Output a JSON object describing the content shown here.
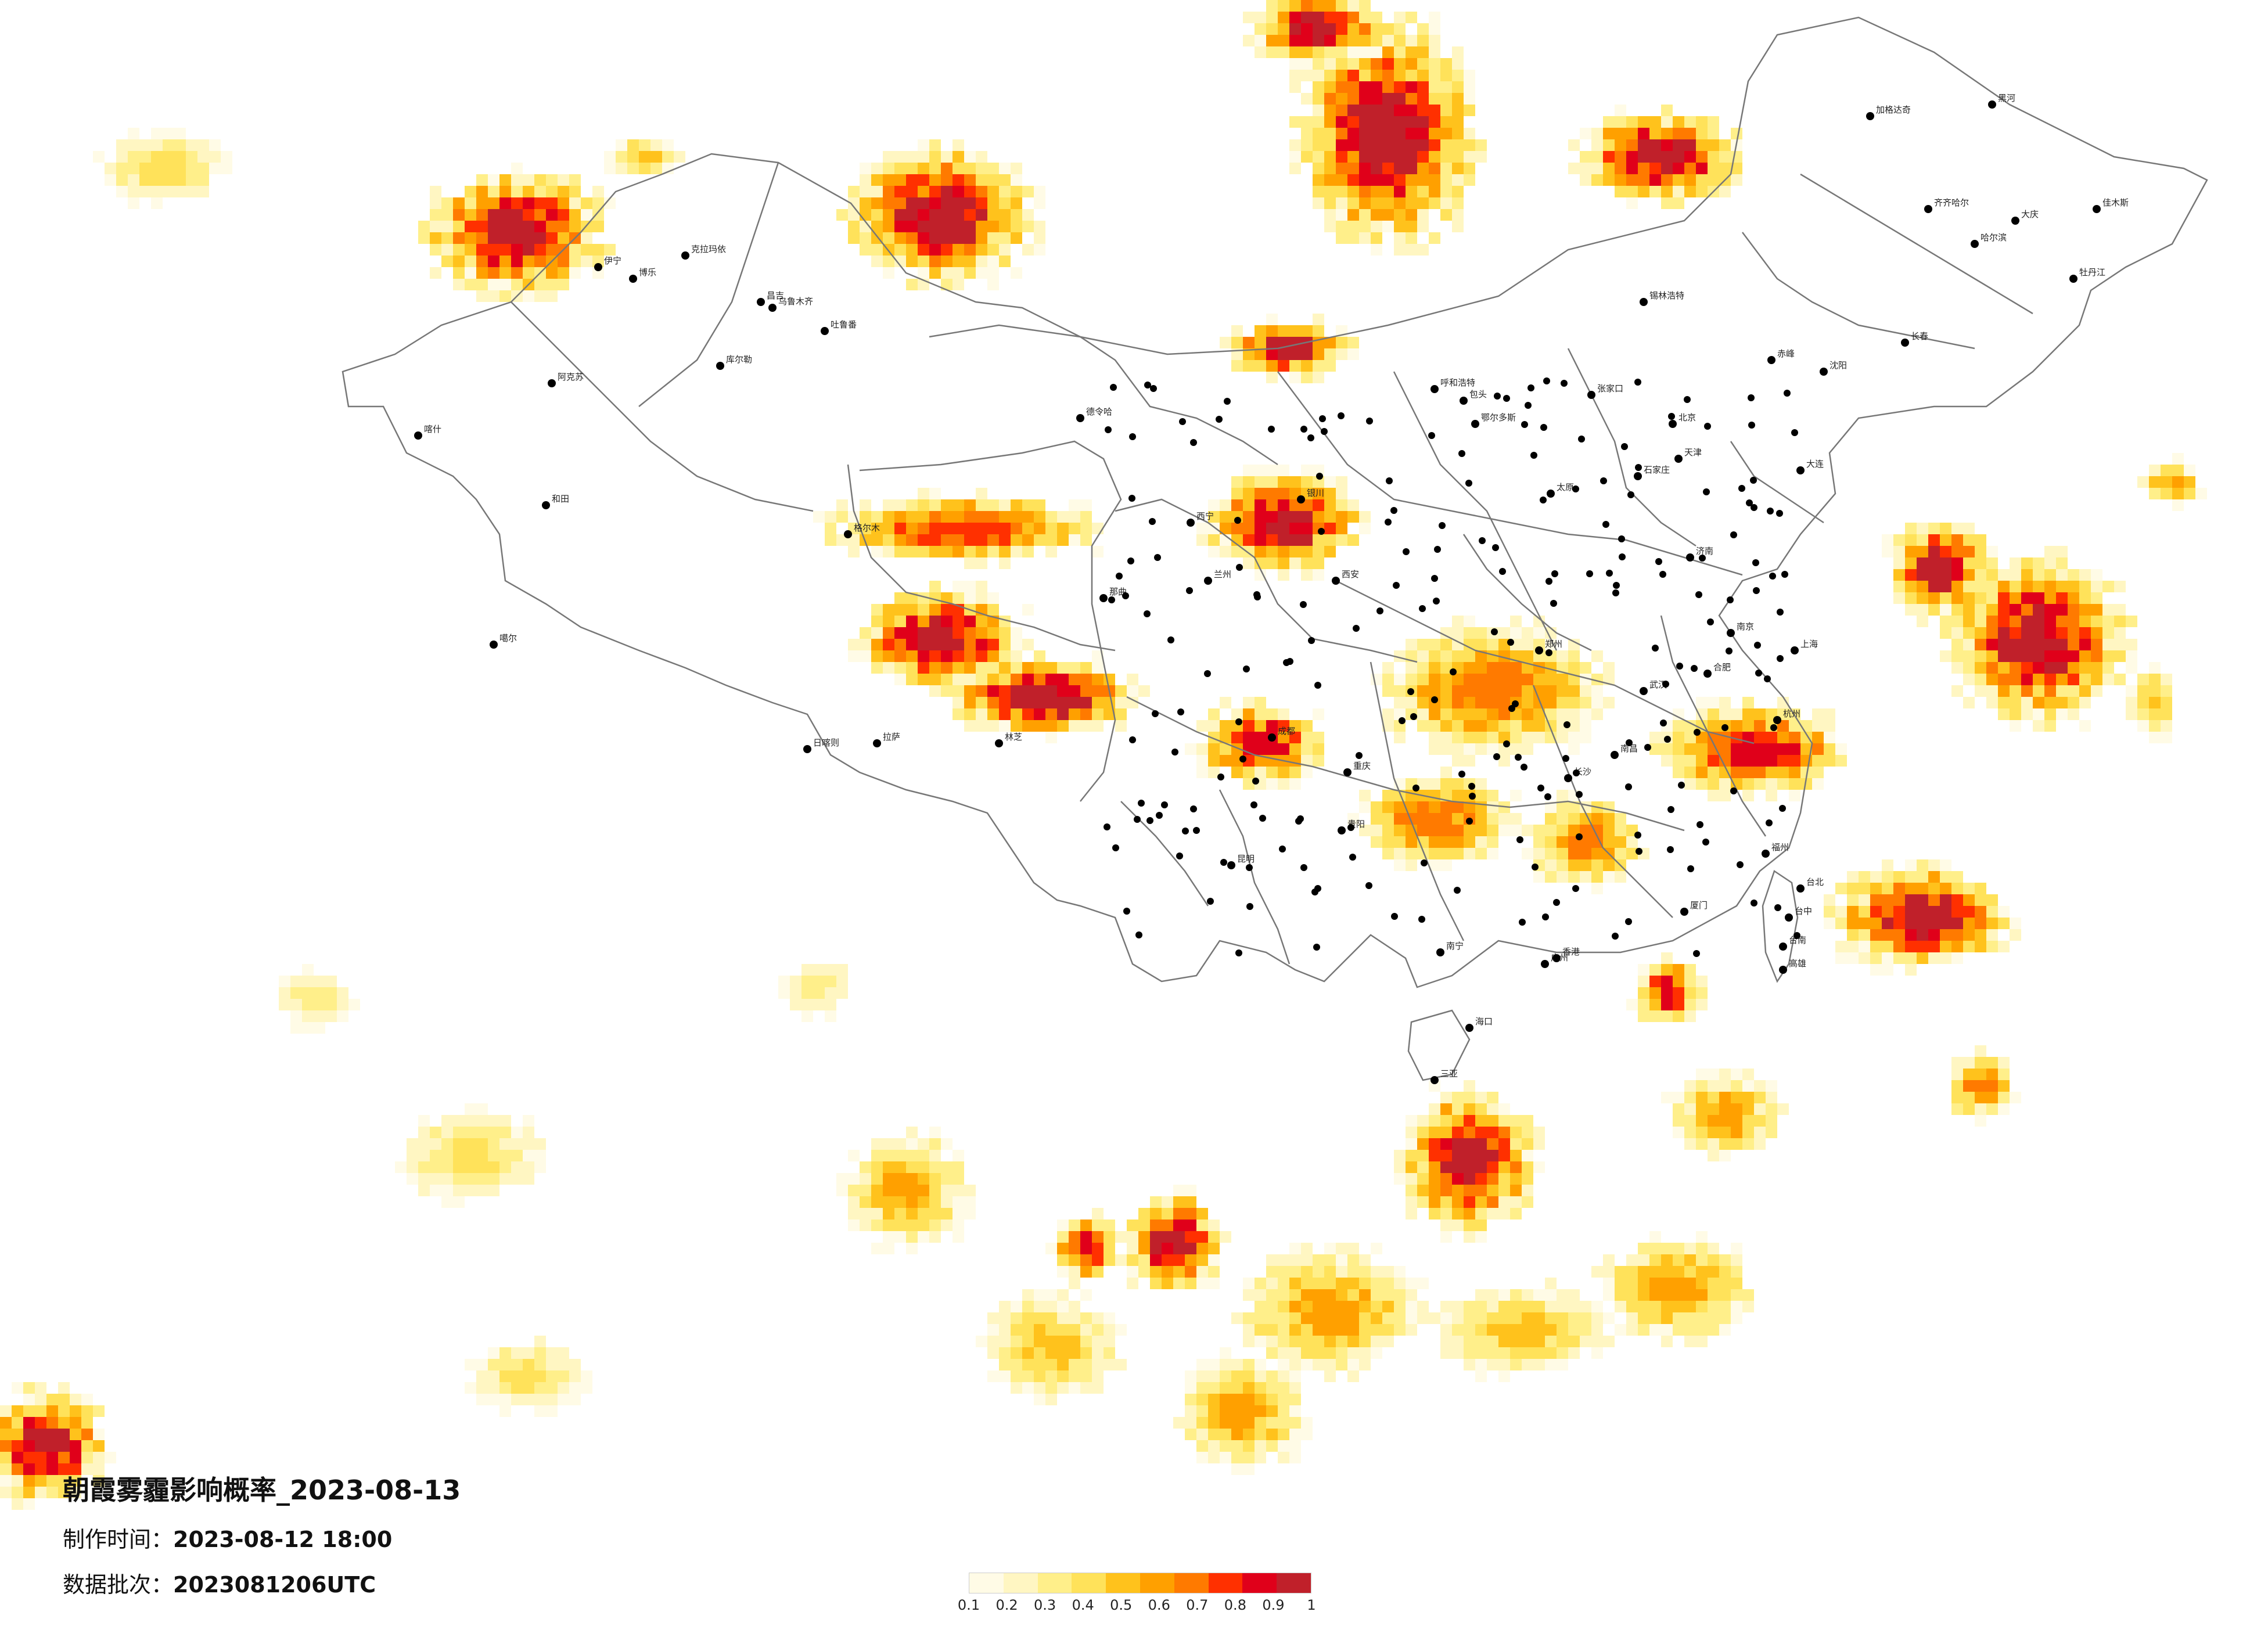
{
  "title": "朝霞雾霾影响概率_2023-08-13",
  "issue_time": {
    "label": "制作时间：",
    "value": "2023-08-12 18:00"
  },
  "data_batch": {
    "label": "数据批次：",
    "value": "2023081206UTC"
  },
  "legend": {
    "ticks": [
      "0.1",
      "0.2",
      "0.3",
      "0.4",
      "0.5",
      "0.6",
      "0.7",
      "0.8",
      "0.9",
      "1"
    ],
    "colors": [
      "#fffbe6",
      "#fff6c2",
      "#ffef8a",
      "#ffe25a",
      "#ffc21c",
      "#ffa000",
      "#ff7a00",
      "#ff3000",
      "#e0001a",
      "#c0202a"
    ]
  },
  "cities": [
    "克拉玛依",
    "昌吉",
    "乌鲁木齐",
    "吐鲁番",
    "伊宁",
    "博乐",
    "库尔勒",
    "阿克苏",
    "喀什",
    "和田",
    "噶尔",
    "日喀则",
    "拉萨",
    "林芝",
    "那曲",
    "格尔木",
    "西宁",
    "德令哈",
    "兰州",
    "银川",
    "呼和浩特",
    "包头",
    "鄂尔多斯",
    "张家口",
    "北京",
    "天津",
    "石家庄",
    "太原",
    "郑州",
    "西安",
    "成都",
    "重庆",
    "贵阳",
    "昆明",
    "南宁",
    "广州",
    "海口",
    "长沙",
    "武汉",
    "南昌",
    "杭州",
    "合肥",
    "南京",
    "上海",
    "济南",
    "沈阳",
    "长春",
    "哈尔滨",
    "齐齐哈尔",
    "大庆",
    "佳木斯",
    "牡丹江",
    "加格达奇",
    "黑河",
    "锡林浩特",
    "赤峰",
    "大连",
    "福州",
    "厦门",
    "台北",
    "台中",
    "台南",
    "高雄",
    "三亚",
    "香港"
  ]
}
